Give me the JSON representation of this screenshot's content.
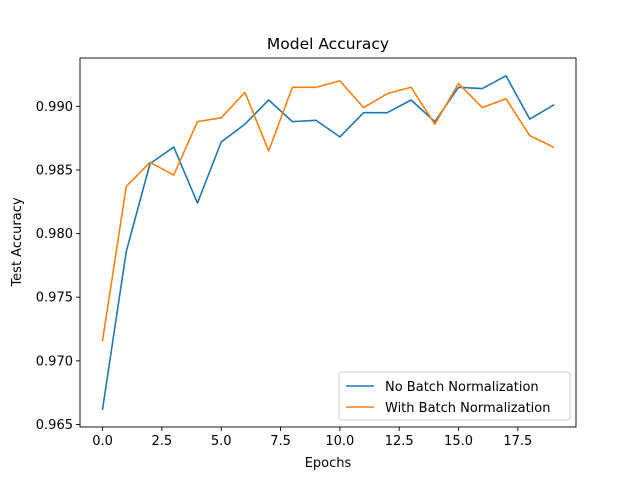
{
  "chart_data": {
    "type": "line",
    "title": "Model Accuracy",
    "xlabel": "Epochs",
    "ylabel": "Test Accuracy",
    "xlim": [
      -0.95,
      19.95
    ],
    "ylim": [
      0.9648,
      0.9938
    ],
    "x": [
      0,
      1,
      2,
      3,
      4,
      5,
      6,
      7,
      8,
      9,
      10,
      11,
      12,
      13,
      14,
      15,
      16,
      17,
      18,
      19
    ],
    "x_ticks": [
      0.0,
      2.5,
      5.0,
      7.5,
      10.0,
      12.5,
      15.0,
      17.5
    ],
    "x_tick_labels": [
      "0.0",
      "2.5",
      "5.0",
      "7.5",
      "10.0",
      "12.5",
      "15.0",
      "17.5"
    ],
    "y_ticks": [
      0.965,
      0.97,
      0.975,
      0.98,
      0.985,
      0.99
    ],
    "y_tick_labels": [
      "0.965",
      "0.970",
      "0.975",
      "0.980",
      "0.985",
      "0.990"
    ],
    "grid": false,
    "legend_position": "lower-right",
    "series": [
      {
        "name": "No Batch Normalization",
        "color": "#1f77b4",
        "values": [
          0.9662,
          0.9786,
          0.9855,
          0.9868,
          0.9824,
          0.9872,
          0.9886,
          0.9905,
          0.9888,
          0.9889,
          0.9876,
          0.9895,
          0.9895,
          0.9905,
          0.9888,
          0.9915,
          0.9914,
          0.9924,
          0.989,
          0.9901
        ]
      },
      {
        "name": "With Batch Normalization",
        "color": "#ff7f0e",
        "values": [
          0.9716,
          0.9837,
          0.9856,
          0.9846,
          0.9888,
          0.9891,
          0.9911,
          0.9865,
          0.9915,
          0.9915,
          0.992,
          0.9899,
          0.991,
          0.9915,
          0.9886,
          0.9918,
          0.9899,
          0.9906,
          0.9877,
          0.9868
        ]
      }
    ]
  }
}
